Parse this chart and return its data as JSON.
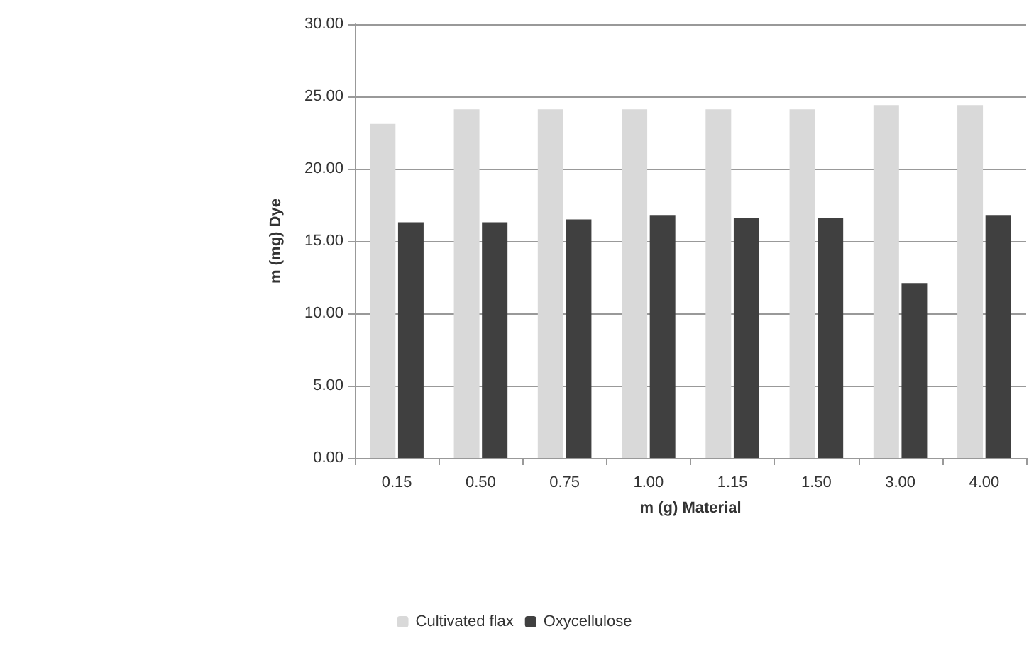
{
  "chart_data": {
    "type": "bar",
    "xlabel": "m (g) Material",
    "ylabel": "m (mg) Dye",
    "categories": [
      "0.15",
      "0.50",
      "0.75",
      "1.00",
      "1.15",
      "1.50",
      "3.00",
      "4.00"
    ],
    "series": [
      {
        "name": "Cultivated flax",
        "color": "#d9d9d9",
        "values": [
          23.1,
          24.1,
          24.1,
          24.1,
          24.1,
          24.1,
          24.4,
          24.4
        ]
      },
      {
        "name": "Oxycellulose",
        "color": "#404040",
        "values": [
          16.3,
          16.3,
          16.5,
          16.8,
          16.6,
          16.6,
          12.1,
          16.8
        ]
      }
    ],
    "ylim": [
      0,
      30
    ],
    "yticks": [
      {
        "value": 0,
        "label": "0.00"
      },
      {
        "value": 5,
        "label": "5.00"
      },
      {
        "value": 10,
        "label": "10.00"
      },
      {
        "value": 15,
        "label": "15.00"
      },
      {
        "value": 20,
        "label": "20.00"
      },
      {
        "value": 25,
        "label": "25.00"
      },
      {
        "value": 30,
        "label": "30.00"
      }
    ],
    "grid": "y",
    "legend": "bottom"
  }
}
